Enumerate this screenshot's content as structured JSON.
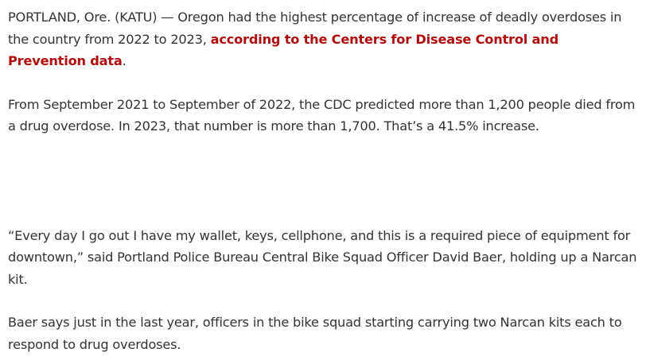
{
  "article": {
    "p1_before": "PORTLAND, Ore. (KATU) — Oregon had the highest percentage of increase of deadly overdoses in the country from 2022 to 2023, ",
    "p1_link": "according to the Centers for Disease Control and Prevention data",
    "p1_after": ".",
    "p2": "From September 2021 to September of 2022, the CDC predicted more than 1,200 people died from a drug overdose. In 2023, that number is more than 1,700. That’s a 41.5% increase.",
    "p3": "“Every day I go out I have my wallet, keys, cellphone, and this is a required piece of equipment for downtown,” said Portland Police Bureau Central Bike Squad Officer David Baer, holding up a Narcan kit.",
    "p4": "Baer says just in the last year, officers in the bike squad starting carrying two Narcan kits each to respond to drug overdoses."
  },
  "colors": {
    "link": "#b00c0c",
    "text": "#333333"
  }
}
